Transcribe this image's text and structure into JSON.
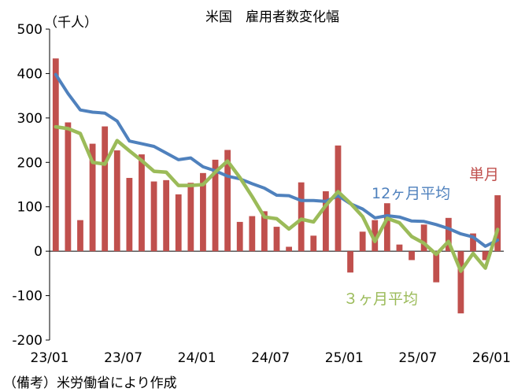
{
  "chart_data": {
    "type": "bar+line",
    "title": "米国　雇用者数変化幅",
    "unit_label": "（千人）",
    "source_note": "（備考）米労働省により作成",
    "ylim": [
      -200,
      500
    ],
    "yticks": [
      -200,
      -100,
      0,
      100,
      200,
      300,
      400,
      500
    ],
    "ytick_labels": [
      "-200",
      "-100",
      "0",
      "100",
      "200",
      "300",
      "400",
      "500"
    ],
    "xtick_labels": [
      "23/01",
      "23/07",
      "24/01",
      "24/07",
      "25/01",
      "25/07",
      "26/01"
    ],
    "xtick_indices": [
      0,
      6,
      12,
      18,
      24,
      30,
      36
    ],
    "months": [
      "23/01",
      "23/02",
      "23/03",
      "23/04",
      "23/05",
      "23/06",
      "23/07",
      "23/08",
      "23/09",
      "23/10",
      "23/11",
      "23/12",
      "24/01",
      "24/02",
      "24/03",
      "24/04",
      "24/05",
      "24/06",
      "24/07",
      "24/08",
      "24/09",
      "24/10",
      "24/11",
      "24/12",
      "25/01",
      "25/02",
      "25/03",
      "25/04",
      "25/05",
      "25/06",
      "25/07",
      "25/08",
      "25/09",
      "25/10",
      "25/11",
      "25/12",
      "26/01"
    ],
    "series": [
      {
        "name": "単月",
        "kind": "bar",
        "color": "#C0504D",
        "values": [
          434,
          290,
          70,
          242,
          281,
          227,
          165,
          218,
          157,
          160,
          128,
          154,
          176,
          206,
          228,
          66,
          79,
          90,
          55,
          10,
          155,
          35,
          135,
          238,
          -48,
          44,
          70,
          108,
          15,
          -20,
          60,
          -70,
          75,
          -140,
          40,
          -20,
          126
        ]
      },
      {
        "name": "12ヶ月平均",
        "kind": "line",
        "color": "#4F81BD",
        "values": [
          398,
          355,
          318,
          313,
          311,
          293,
          248,
          242,
          236,
          221,
          206,
          210,
          190,
          181,
          169,
          163,
          152,
          142,
          126,
          125,
          114,
          114,
          112,
          125,
          107,
          95,
          75,
          80,
          77,
          68,
          67,
          60,
          51,
          39,
          32,
          11,
          25
        ]
      },
      {
        "name": "３ヶ月平均",
        "kind": "line",
        "color": "#9BBB59",
        "values": [
          280,
          276,
          265,
          200,
          196,
          249,
          226,
          204,
          180,
          178,
          148,
          148,
          150,
          178,
          203,
          166,
          123,
          77,
          73,
          50,
          72,
          66,
          103,
          134,
          108,
          78,
          22,
          74,
          64,
          33,
          18,
          -7,
          22,
          -45,
          -5,
          -38,
          49
        ]
      }
    ],
    "annotations": {
      "single_month_label": "単月",
      "twelve_month_label": "12ヶ月平均",
      "three_month_label": "３ヶ月平均"
    }
  }
}
